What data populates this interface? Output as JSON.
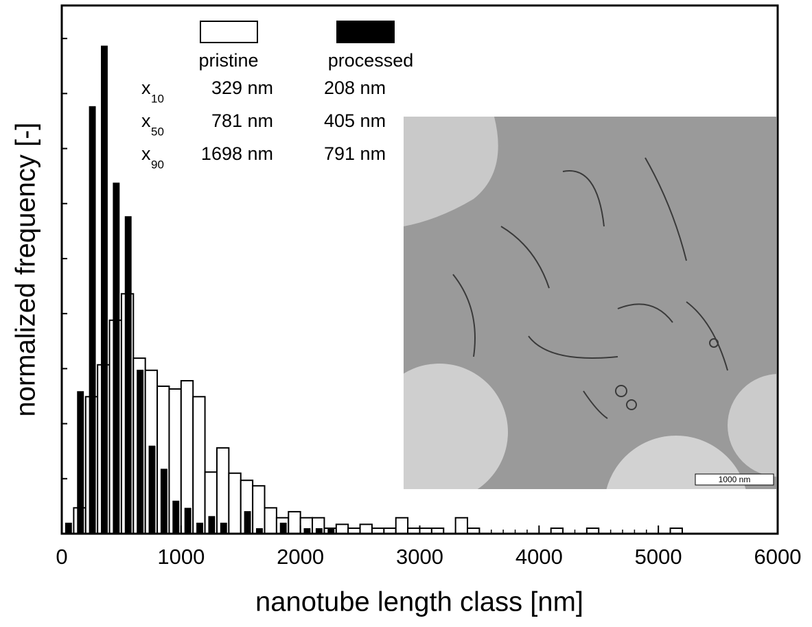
{
  "chart_data": {
    "type": "histogram",
    "xlabel": "nanotube length class [nm]",
    "ylabel": "normalized frequency [-]",
    "bins": [
      0,
      100,
      200,
      300,
      400,
      500,
      600,
      700,
      800,
      900,
      1000,
      1100,
      1200,
      1300,
      1400,
      1500,
      1600,
      1700,
      1800,
      1900,
      2000,
      2100,
      2200,
      2300,
      2400,
      2500,
      2600,
      2700,
      2800,
      2900,
      3000,
      3100,
      3200,
      3300,
      3400,
      3500,
      3600,
      3700,
      3800,
      3900,
      4000,
      4100,
      4200,
      4300,
      4400,
      4500,
      4600,
      4700,
      4800,
      4900,
      5000,
      5100,
      5200
    ],
    "series": [
      {
        "name": "pristine",
        "color": "#ffffff",
        "values": [
          0,
          0.47,
          2.49,
          3.07,
          3.88,
          4.36,
          3.19,
          2.97,
          2.68,
          2.63,
          2.78,
          2.49,
          1.12,
          1.56,
          1.1,
          0.97,
          0.87,
          0.47,
          0.29,
          0.4,
          0.29,
          0.29,
          0.1,
          0.17,
          0.1,
          0.17,
          0.1,
          0.1,
          0.29,
          0.1,
          0.1,
          0.1,
          0,
          0.29,
          0.1,
          0,
          0,
          0,
          0,
          0,
          0,
          0.1,
          0,
          0,
          0.1,
          0,
          0,
          0,
          0,
          0,
          0,
          0.1
        ]
      },
      {
        "name": "processed",
        "color": "#000000",
        "values": [
          0.2,
          2.59,
          7.77,
          8.87,
          6.38,
          5.77,
          2.98,
          1.6,
          1.18,
          0.6,
          0.47,
          0.2,
          0.32,
          0.2,
          0,
          0.41,
          0.1,
          0,
          0.2,
          0,
          0.1,
          0.1,
          0.1,
          0,
          0,
          0,
          0,
          0,
          0,
          0,
          0,
          0,
          0,
          0,
          0,
          0,
          0,
          0,
          0,
          0,
          0,
          0,
          0,
          0,
          0,
          0,
          0,
          0,
          0,
          0,
          0,
          0
        ]
      }
    ],
    "xlim": [
      0,
      6000
    ],
    "xticks": [
      0,
      1000,
      2000,
      3000,
      4000,
      5000,
      6000
    ],
    "ylim": [
      0,
      9.6
    ],
    "yticks": [
      1,
      2,
      3,
      4,
      5,
      6,
      7,
      8,
      9
    ],
    "statistics": [
      {
        "symbol": "x",
        "subscript": "10",
        "pristine": "329 nm",
        "processed": "208 nm"
      },
      {
        "symbol": "x",
        "subscript": "50",
        "pristine": "781 nm",
        "processed": "405 nm"
      },
      {
        "symbol": "x",
        "subscript": "90",
        "pristine": "1698 nm",
        "processed": "791 nm"
      }
    ],
    "inset_scale_bar": "1000 nm"
  }
}
